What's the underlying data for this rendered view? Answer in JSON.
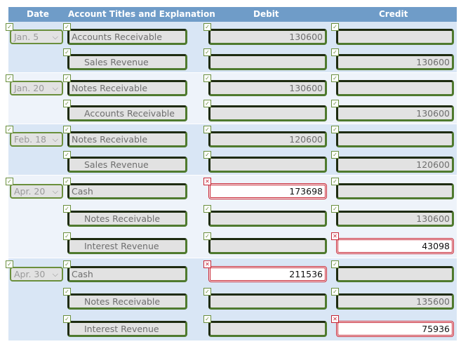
{
  "header": {
    "date": "Date",
    "account": "Account Titles and Explanation",
    "debit": "Debit",
    "credit": "Credit"
  },
  "colors": {
    "header_bg": "#6f9cc8",
    "correct": "#4f7a2e",
    "incorrect": "#c62433"
  },
  "entries": [
    {
      "date": "Jan. 5",
      "rows": [
        {
          "account": "Accounts Receivable",
          "indent": false,
          "debit": "130600",
          "credit": "",
          "debit_status": "correct",
          "credit_status": "correct"
        },
        {
          "account": "Sales Revenue",
          "indent": true,
          "debit": "",
          "credit": "130600",
          "debit_status": "correct",
          "credit_status": "correct"
        }
      ]
    },
    {
      "date": "Jan. 20",
      "rows": [
        {
          "account": "Notes Receivable",
          "indent": false,
          "debit": "130600",
          "credit": "",
          "debit_status": "correct",
          "credit_status": "correct"
        },
        {
          "account": "Accounts Receivable",
          "indent": true,
          "debit": "",
          "credit": "130600",
          "debit_status": "correct",
          "credit_status": "correct"
        }
      ]
    },
    {
      "date": "Feb. 18",
      "rows": [
        {
          "account": "Notes Receivable",
          "indent": false,
          "debit": "120600",
          "credit": "",
          "debit_status": "correct",
          "credit_status": "correct"
        },
        {
          "account": "Sales Revenue",
          "indent": true,
          "debit": "",
          "credit": "120600",
          "debit_status": "correct",
          "credit_status": "correct"
        }
      ]
    },
    {
      "date": "Apr. 20",
      "rows": [
        {
          "account": "Cash",
          "indent": false,
          "debit": "173698",
          "credit": "",
          "debit_status": "incorrect",
          "credit_status": "correct"
        },
        {
          "account": "Notes Receivable",
          "indent": true,
          "debit": "",
          "credit": "130600",
          "debit_status": "correct",
          "credit_status": "correct"
        },
        {
          "account": "Interest Revenue",
          "indent": true,
          "debit": "",
          "credit": "43098",
          "debit_status": "correct",
          "credit_status": "incorrect"
        }
      ]
    },
    {
      "date": "Apr. 30",
      "rows": [
        {
          "account": "Cash",
          "indent": false,
          "debit": "211536",
          "credit": "",
          "debit_status": "incorrect",
          "credit_status": "correct"
        },
        {
          "account": "Notes Receivable",
          "indent": true,
          "debit": "",
          "credit": "135600",
          "debit_status": "correct",
          "credit_status": "correct"
        },
        {
          "account": "Interest Revenue",
          "indent": true,
          "debit": "",
          "credit": "75936",
          "debit_status": "correct",
          "credit_status": "incorrect"
        }
      ]
    }
  ]
}
